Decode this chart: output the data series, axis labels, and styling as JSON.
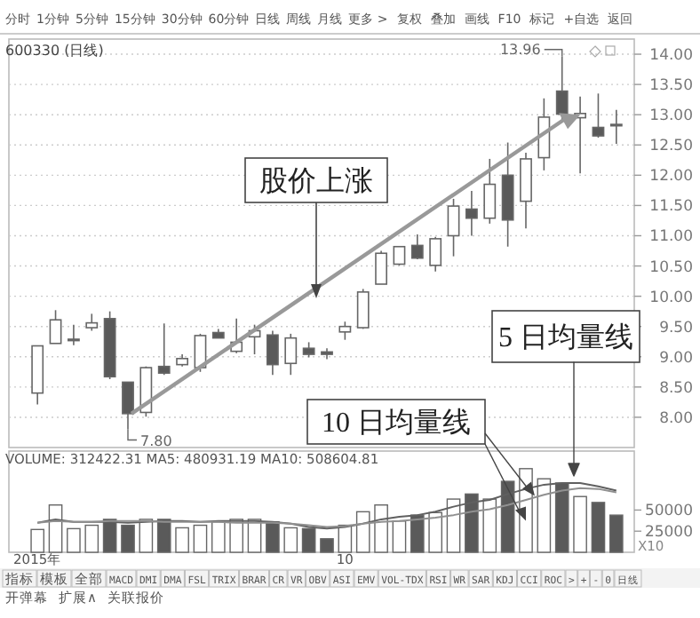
{
  "chart_data": [
    {
      "type": "candlestick",
      "title": "600330 (日线)",
      "annotations": [
        "股价上涨",
        "13.96",
        "7.80"
      ],
      "ohlc": [
        [
          8.4,
          9.18,
          8.21,
          9.18
        ],
        [
          9.22,
          9.77,
          9.22,
          9.61
        ],
        [
          9.29,
          9.53,
          9.19,
          9.27
        ],
        [
          9.48,
          9.71,
          9.43,
          9.56
        ],
        [
          9.63,
          9.75,
          8.63,
          8.67
        ],
        [
          8.58,
          8.58,
          7.8,
          8.06
        ],
        [
          8.08,
          8.84,
          8.01,
          8.82
        ],
        [
          8.84,
          9.55,
          8.7,
          8.73
        ],
        [
          8.87,
          9.04,
          8.84,
          8.97
        ],
        [
          8.82,
          9.38,
          8.75,
          9.35
        ],
        [
          9.4,
          9.46,
          9.31,
          9.31
        ],
        [
          9.09,
          9.63,
          9.06,
          9.24
        ],
        [
          9.33,
          9.53,
          9.04,
          9.43
        ],
        [
          9.36,
          9.43,
          8.7,
          8.87
        ],
        [
          8.89,
          9.38,
          8.7,
          9.31
        ],
        [
          9.14,
          9.24,
          8.99,
          9.04
        ],
        [
          9.08,
          9.14,
          8.96,
          9.04
        ],
        [
          9.41,
          9.58,
          9.28,
          9.5
        ],
        [
          9.48,
          10.12,
          9.46,
          10.07
        ],
        [
          10.2,
          10.75,
          10.2,
          10.71
        ],
        [
          10.53,
          10.82,
          10.51,
          10.82
        ],
        [
          10.84,
          11.02,
          10.61,
          10.63
        ],
        [
          10.51,
          10.98,
          10.41,
          10.95
        ],
        [
          11.0,
          11.61,
          10.66,
          11.49
        ],
        [
          11.44,
          11.74,
          11.0,
          11.29
        ],
        [
          11.29,
          12.27,
          11.2,
          11.85
        ],
        [
          12.0,
          12.54,
          10.82,
          11.26
        ],
        [
          11.57,
          12.37,
          11.12,
          12.27
        ],
        [
          12.29,
          13.27,
          12.08,
          12.96
        ],
        [
          13.39,
          13.96,
          12.88,
          13.01
        ],
        [
          12.95,
          13.3,
          12.03,
          13.02
        ],
        [
          12.79,
          13.35,
          12.62,
          12.65
        ],
        [
          12.84,
          13.08,
          12.52,
          12.84
        ]
      ],
      "ylim": [
        7.5,
        14.25
      ],
      "yticks": [
        {
          "value": 8,
          "label": "8.00"
        },
        {
          "value": 8.5,
          "label": "8.50"
        },
        {
          "value": 9,
          "label": "9.00"
        },
        {
          "value": 9.5,
          "label": "9.50"
        },
        {
          "value": 10,
          "label": "10.00"
        },
        {
          "value": 10.5,
          "label": "10.50"
        },
        {
          "value": 11,
          "label": "11.00"
        },
        {
          "value": 11.5,
          "label": "11.50"
        },
        {
          "value": 12,
          "label": "12.00"
        },
        {
          "value": 12.5,
          "label": "12.50"
        },
        {
          "value": 13,
          "label": "13.00"
        },
        {
          "value": 13.5,
          "label": "13.50"
        },
        {
          "value": 14,
          "label": "14.00"
        }
      ],
      "grid": "y",
      "tick_labels": "y"
    },
    {
      "type": "bar",
      "title": "VOLUME: 312422.31 MA5: 480931.19 MA10: 508604.81",
      "annotations": [
        {
          "text": "10 日均量线",
          "y": 52000
        },
        "5 日均量线",
        "X10"
      ],
      "categories": [
        "2015年",
        null,
        null,
        null,
        null,
        null,
        null,
        null,
        null,
        null,
        null,
        null,
        null,
        null,
        null,
        null,
        null,
        "10",
        null,
        null,
        null,
        null,
        null,
        null,
        null,
        null,
        null,
        null,
        null,
        null,
        null,
        null,
        null
      ],
      "series": [
        {
          "values": [
            27000,
            56000,
            28000,
            32000,
            39000,
            32000,
            39000,
            39000,
            29000,
            32000,
            36000,
            39000,
            39000,
            36000,
            29000,
            28000,
            16000,
            32000,
            48000,
            56000,
            37000,
            44000,
            47000,
            63000,
            69000,
            63000,
            84000,
            99000,
            87000,
            82000,
            66000,
            59000,
            44000
          ],
          "colors": [
            "#ffffff",
            "#ffffff",
            "#ffffff",
            "#ffffff",
            "#5a5a5a",
            "#5a5a5a",
            "#ffffff",
            "#5a5a5a",
            "#ffffff",
            "#ffffff",
            "#ffffff",
            "#ffffff",
            "#ffffff",
            "#5a5a5a",
            "#ffffff",
            "#5a5a5a",
            "#5a5a5a",
            "#ffffff",
            "#ffffff",
            "#ffffff",
            "#ffffff",
            "#5a5a5a",
            "#ffffff",
            "#ffffff",
            "#5a5a5a",
            "#ffffff",
            "#5a5a5a",
            "#ffffff",
            "#ffffff",
            "#5a5a5a",
            "#ffffff",
            "#5a5a5a",
            "#5a5a5a"
          ]
        },
        {
          "type": "line",
          "color": "#606060",
          "values": [
            35000,
            39000,
            36000,
            36000,
            36000,
            35000,
            36000,
            37000,
            37000,
            36000,
            37000,
            37000,
            37000,
            36000,
            34000,
            30000,
            28000,
            30000,
            34000,
            39000,
            42000,
            44000,
            48000,
            54000,
            59000,
            62000,
            69000,
            75000,
            80000,
            82000,
            82000,
            78000,
            73000
          ]
        },
        {
          "type": "line",
          "color": "#909090",
          "values": [
            35000,
            37000,
            36000,
            36000,
            37000,
            37000,
            37000,
            36000,
            36000,
            36000,
            36000,
            35000,
            35000,
            35000,
            34000,
            32000,
            30000,
            31000,
            34000,
            36000,
            37000,
            39000,
            41000,
            44000,
            48000,
            51000,
            56000,
            62000,
            68000,
            73000,
            76000,
            75000,
            71000
          ]
        }
      ],
      "ylim": [
        0,
        103000
      ],
      "yticks": [
        25000,
        50000
      ],
      "tick_labels": "xy"
    },
    {
      "type": "other",
      "annotations": [
        "分时",
        "1分钟",
        "5分钟",
        "15分钟",
        "30分钟",
        "60分钟",
        "日线",
        "周线",
        "月线",
        "更多 >",
        "复权",
        "叠加",
        "画线",
        "F10",
        "标记",
        "+自选",
        "返回",
        "指标",
        "模板",
        "全部",
        "MACD",
        "DMI",
        "DMA",
        "FSL",
        "TRIX",
        "BRAR",
        "CR",
        "VR",
        "OBV",
        "ASI",
        "EMV",
        "VOL-TDX",
        "RSI",
        "WR",
        "SAR",
        "KDJ",
        "CCI",
        "ROC",
        ">",
        "+",
        "-",
        "0",
        "日线",
        "开弹幕",
        "扩展∧",
        "关联报价"
      ]
    }
  ]
}
